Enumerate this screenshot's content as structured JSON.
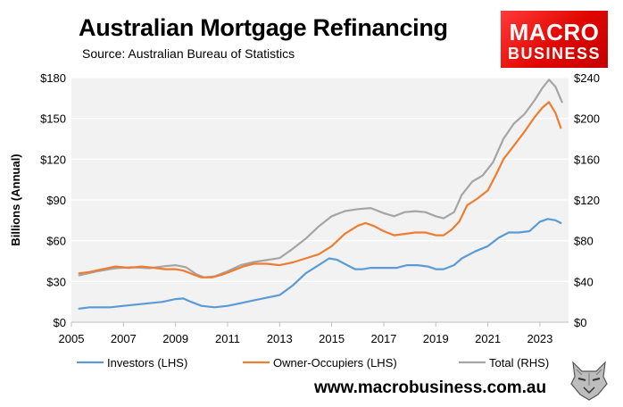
{
  "title": "Australian Mortgage Refinancing",
  "subtitle": "Source: Australian Bureau of Statistics",
  "logo": {
    "line1": "MACRO",
    "line2": "BUSINESS"
  },
  "website": "www.macrobusiness.com.au",
  "colors": {
    "investors": "#5b9bd5",
    "owner_occupiers": "#ed7d31",
    "total": "#a5a5a5",
    "plot_bg": "#f2f2f2",
    "logo_bg": "#e10600"
  },
  "icons": {
    "mascot": "wolf-icon"
  },
  "chart_data": {
    "type": "line",
    "title": "Australian Mortgage Refinancing",
    "ylabel": "Billions (Annual)",
    "xlim": [
      2005,
      2024.1
    ],
    "ylim_left": [
      0,
      180
    ],
    "ylim_right": [
      0,
      240
    ],
    "x_ticks": [
      2005,
      2007,
      2009,
      2011,
      2013,
      2015,
      2017,
      2019,
      2021,
      2023
    ],
    "y_ticks_left": [
      "$0",
      "$30",
      "$60",
      "$90",
      "$120",
      "$150",
      "$180"
    ],
    "y_ticks_right": [
      "$0",
      "$40",
      "$80",
      "$120",
      "$160",
      "$200",
      "$240"
    ],
    "grid": "horizontal",
    "legend_position": "bottom",
    "series": [
      {
        "name": "Investors (LHS)",
        "axis": "left",
        "points": [
          [
            2005.3,
            10
          ],
          [
            2005.7,
            11
          ],
          [
            2006.5,
            11
          ],
          [
            2007.0,
            12
          ],
          [
            2007.5,
            13
          ],
          [
            2008.0,
            14
          ],
          [
            2008.5,
            15
          ],
          [
            2009.0,
            17
          ],
          [
            2009.3,
            17.5
          ],
          [
            2009.6,
            15
          ],
          [
            2010.0,
            12
          ],
          [
            2010.5,
            11
          ],
          [
            2011.0,
            12
          ],
          [
            2011.5,
            14
          ],
          [
            2012.0,
            16
          ],
          [
            2012.5,
            18
          ],
          [
            2013.0,
            20
          ],
          [
            2013.5,
            27
          ],
          [
            2014.0,
            36
          ],
          [
            2014.5,
            42
          ],
          [
            2014.9,
            47
          ],
          [
            2015.2,
            46
          ],
          [
            2015.6,
            42
          ],
          [
            2015.9,
            39
          ],
          [
            2016.2,
            39
          ],
          [
            2016.5,
            40
          ],
          [
            2017.0,
            40
          ],
          [
            2017.5,
            40
          ],
          [
            2017.9,
            42
          ],
          [
            2018.3,
            42
          ],
          [
            2018.7,
            41
          ],
          [
            2019.0,
            39
          ],
          [
            2019.3,
            39
          ],
          [
            2019.7,
            42
          ],
          [
            2020.0,
            47
          ],
          [
            2020.5,
            52
          ],
          [
            2021.0,
            56
          ],
          [
            2021.4,
            62
          ],
          [
            2021.8,
            66
          ],
          [
            2022.2,
            66
          ],
          [
            2022.6,
            67
          ],
          [
            2023.0,
            74
          ],
          [
            2023.3,
            76
          ],
          [
            2023.6,
            75
          ],
          [
            2023.8,
            73
          ]
        ]
      },
      {
        "name": "Owner-Occupiers (LHS)",
        "axis": "left",
        "points": [
          [
            2005.3,
            36
          ],
          [
            2005.7,
            37
          ],
          [
            2006.2,
            39
          ],
          [
            2006.7,
            41
          ],
          [
            2007.2,
            40
          ],
          [
            2007.7,
            41
          ],
          [
            2008.2,
            40
          ],
          [
            2008.6,
            39
          ],
          [
            2009.0,
            39
          ],
          [
            2009.3,
            38
          ],
          [
            2009.7,
            35
          ],
          [
            2010.0,
            33
          ],
          [
            2010.4,
            33
          ],
          [
            2010.8,
            35
          ],
          [
            2011.2,
            38
          ],
          [
            2011.6,
            41
          ],
          [
            2012.0,
            43
          ],
          [
            2012.5,
            43
          ],
          [
            2013.0,
            42
          ],
          [
            2013.5,
            44
          ],
          [
            2014.0,
            47
          ],
          [
            2014.5,
            50
          ],
          [
            2015.0,
            56
          ],
          [
            2015.5,
            65
          ],
          [
            2016.0,
            71
          ],
          [
            2016.3,
            73
          ],
          [
            2016.6,
            71
          ],
          [
            2017.0,
            67
          ],
          [
            2017.4,
            64
          ],
          [
            2017.8,
            65
          ],
          [
            2018.2,
            66
          ],
          [
            2018.6,
            66
          ],
          [
            2019.0,
            64
          ],
          [
            2019.3,
            64
          ],
          [
            2019.6,
            68
          ],
          [
            2019.9,
            74
          ],
          [
            2020.2,
            86
          ],
          [
            2020.6,
            91
          ],
          [
            2021.0,
            97
          ],
          [
            2021.3,
            108
          ],
          [
            2021.6,
            120
          ],
          [
            2022.0,
            130
          ],
          [
            2022.4,
            140
          ],
          [
            2022.8,
            151
          ],
          [
            2023.1,
            158
          ],
          [
            2023.35,
            162
          ],
          [
            2023.6,
            154
          ],
          [
            2023.8,
            143
          ]
        ]
      },
      {
        "name": "Total (RHS)",
        "axis": "right",
        "points": [
          [
            2005.3,
            46
          ],
          [
            2006.0,
            50
          ],
          [
            2006.7,
            53
          ],
          [
            2007.3,
            54
          ],
          [
            2008.0,
            53
          ],
          [
            2008.6,
            55
          ],
          [
            2009.0,
            56
          ],
          [
            2009.4,
            54
          ],
          [
            2009.8,
            47
          ],
          [
            2010.1,
            44
          ],
          [
            2010.5,
            45
          ],
          [
            2011.0,
            50
          ],
          [
            2011.5,
            56
          ],
          [
            2012.0,
            59
          ],
          [
            2012.5,
            61
          ],
          [
            2013.0,
            63
          ],
          [
            2013.5,
            72
          ],
          [
            2014.0,
            82
          ],
          [
            2014.5,
            94
          ],
          [
            2015.0,
            104
          ],
          [
            2015.5,
            109
          ],
          [
            2016.0,
            111
          ],
          [
            2016.5,
            112
          ],
          [
            2017.0,
            107
          ],
          [
            2017.4,
            104
          ],
          [
            2017.8,
            108
          ],
          [
            2018.2,
            109
          ],
          [
            2018.6,
            108
          ],
          [
            2019.0,
            104
          ],
          [
            2019.3,
            102
          ],
          [
            2019.7,
            108
          ],
          [
            2020.0,
            125
          ],
          [
            2020.4,
            138
          ],
          [
            2020.8,
            144
          ],
          [
            2021.2,
            157
          ],
          [
            2021.6,
            180
          ],
          [
            2022.0,
            195
          ],
          [
            2022.4,
            204
          ],
          [
            2022.8,
            218
          ],
          [
            2023.1,
            230
          ],
          [
            2023.35,
            238
          ],
          [
            2023.6,
            231
          ],
          [
            2023.85,
            216
          ]
        ]
      }
    ]
  }
}
